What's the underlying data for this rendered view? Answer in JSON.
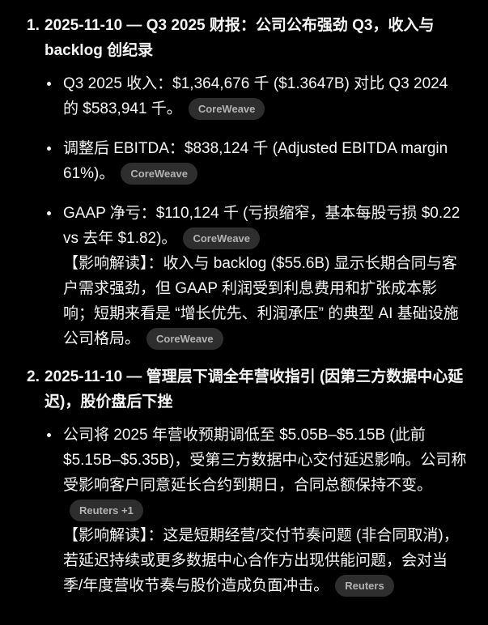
{
  "theme": {
    "background": "#000000",
    "text_color": "#f5f5f5",
    "badge_background": "#2e2e2e",
    "badge_text_color": "#b3b3b3"
  },
  "items": [
    {
      "number": "1.",
      "title": "2025-11-10 — Q3 2025 财报：公司公布强劲 Q3，收入与 backlog 创纪录",
      "bullets": [
        {
          "paragraphs": [
            {
              "text": "Q3 2025 收入：$1,364,676 千 ($1.3647B) 对比 Q3 2024 的 $583,941 千。",
              "badge": "CoreWeave"
            }
          ]
        },
        {
          "paragraphs": [
            {
              "text": "调整后 EBITDA：$838,124 千 (Adjusted EBITDA margin 61%)。",
              "badge": "CoreWeave"
            }
          ]
        },
        {
          "paragraphs": [
            {
              "text": "GAAP 净亏：$110,124 千 (亏损缩窄，基本每股亏损 $0.22 vs 去年 $1.82)。",
              "badge": "CoreWeave"
            },
            {
              "text": "【影响解读】：收入与 backlog ($55.6B) 显示长期合同与客户需求强劲，但 GAAP 利润受到利息费用和扩张成本影响；短期来看是 “增长优先、利润承压” 的典型 AI 基础设施公司格局。",
              "badge": "CoreWeave"
            }
          ]
        }
      ]
    },
    {
      "number": "2.",
      "title": "2025-11-10 — 管理层下调全年营收指引 (因第三方数据中心延迟)，股价盘后下挫",
      "bullets": [
        {
          "paragraphs": [
            {
              "text": "公司将 2025 年营收预期调低至 $5.05B–$5.15B (此前 $5.15B–$5.35B)，受第三方数据中心交付延迟影响。公司称受影响客户同意延长合约到期日，合同总额保持不变。",
              "badge": "Reuters +1"
            },
            {
              "text": "【影响解读】：这是短期经营/交付节奏问题 (非合同取消)，若延迟持续或更多数据中心合作方出现供能问题，会对当季/年度营收节奏与股价造成负面冲击。",
              "badge": "Reuters"
            }
          ]
        }
      ]
    }
  ]
}
